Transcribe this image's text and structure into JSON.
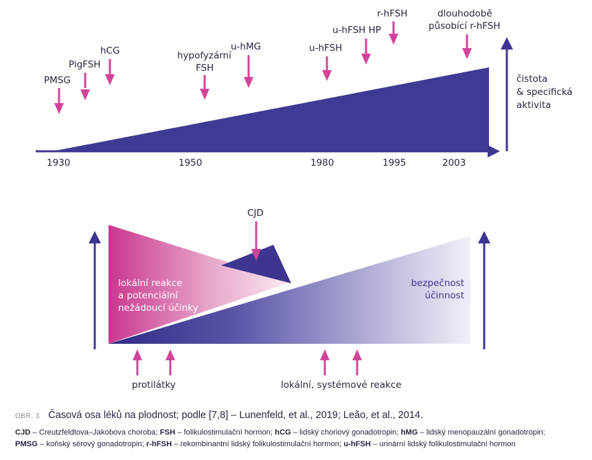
{
  "top_timeline": {
    "years": [
      "1930",
      "1950",
      "1980",
      "1995",
      "2003"
    ],
    "events": [
      {
        "label": "PMSG"
      },
      {
        "label": "PigFSH"
      },
      {
        "label": "hCG"
      },
      {
        "label_line1": "hypofyzární",
        "label_line2": "FSH"
      },
      {
        "label": "u-hMG"
      },
      {
        "label": "u-hFSH"
      },
      {
        "label": "u-hFSH HP"
      },
      {
        "label": "r-hFSH"
      },
      {
        "label_line1": "dlouhodobě",
        "label_line2": "působící r-hFSH"
      }
    ],
    "side_label": {
      "line1": "čistota",
      "line2": "& specifická",
      "line3": "aktivita"
    }
  },
  "bottom_diagram": {
    "cjd_label": "CJD",
    "left_text": {
      "line1": "lokální reakce",
      "line2": "a potenciální",
      "line3": "nežádoucí účinky"
    },
    "right_text": {
      "line1": "bezpečnost",
      "line2": "účinnost"
    },
    "bottom_labels": {
      "left": "protilátky",
      "right": "lokální, systémové reakce"
    }
  },
  "caption": {
    "number": "OBR. 3",
    "title": "Časová osa léků na plodnost; podle [7,8] – Lunenfeld, et al., 2019; Leão, et al., 2014.",
    "legend": [
      {
        "abbr": "CJD",
        "text": " – Creutzfeldtova–Jakobova choroba; "
      },
      {
        "abbr": "FSH",
        "text": " – folikulostimulační hormon; "
      },
      {
        "abbr": "hCG",
        "text": " – lidský choriový gonadotropin; "
      },
      {
        "abbr": "hMG",
        "text": " – lidský menopauzální gonadotropin; "
      },
      {
        "abbr": "PMSG",
        "text": " – koňský sérový gonadotropin; "
      },
      {
        "abbr": "r-hFSH",
        "text": " – rekombinantní lidský folikulostimulační hormon; "
      },
      {
        "abbr": "u-hFSH",
        "text": " – urinární lidský folikulostimulační hormon"
      }
    ]
  },
  "colors": {
    "navy": "#3d3590",
    "magenta": "#c9428f",
    "pink": "#d2449a"
  }
}
